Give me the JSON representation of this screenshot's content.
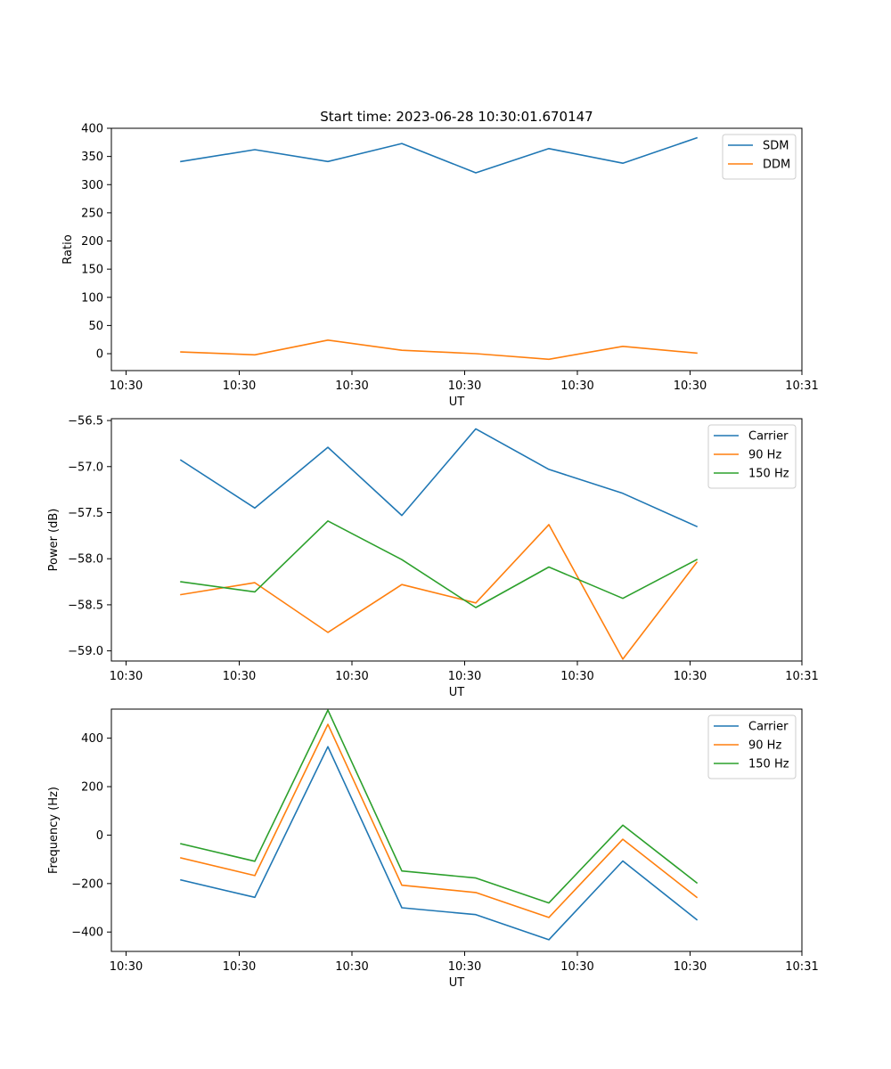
{
  "title": "Start time: 2023-06-28 10:30:01.670147",
  "colors": {
    "blue": "#1f77b4",
    "orange": "#ff7f0e",
    "green": "#2ca02c"
  },
  "chart_data": [
    {
      "type": "line",
      "xlabel": "UT",
      "ylabel": "Ratio",
      "x_tick_labels": [
        "10:30",
        "10:30",
        "10:30",
        "10:30",
        "10:30",
        "10:30",
        "10:31"
      ],
      "yticks": [
        0,
        50,
        100,
        150,
        200,
        250,
        300,
        350,
        400
      ],
      "ylim": [
        -30,
        400
      ],
      "grid": false,
      "legend_position": "upper-right",
      "series": [
        {
          "name": "SDM",
          "color": "#1f77b4",
          "values": [
            341,
            362,
            341,
            373,
            321,
            364,
            338,
            383
          ]
        },
        {
          "name": "DDM",
          "color": "#ff7f0e",
          "values": [
            3,
            -2,
            24,
            6,
            0,
            -10,
            13,
            1
          ]
        }
      ]
    },
    {
      "type": "line",
      "xlabel": "UT",
      "ylabel": "Power (dB)",
      "x_tick_labels": [
        "10:30",
        "10:30",
        "10:30",
        "10:30",
        "10:30",
        "10:30",
        "10:31"
      ],
      "yticks": [
        -59.0,
        -58.5,
        -58.0,
        -57.5,
        -57.0,
        -56.5
      ],
      "ytick_labels": [
        "−59.0",
        "−58.5",
        "−58.0",
        "−57.5",
        "−57.0",
        "−56.5"
      ],
      "ylim": [
        -59.11,
        -56.48
      ],
      "grid": false,
      "legend_position": "upper-right",
      "series": [
        {
          "name": "Carrier",
          "color": "#1f77b4",
          "values": [
            -56.93,
            -57.45,
            -56.79,
            -57.53,
            -56.59,
            -57.03,
            -57.29,
            -57.65
          ]
        },
        {
          "name": "90 Hz",
          "color": "#ff7f0e",
          "values": [
            -58.39,
            -58.26,
            -58.8,
            -58.28,
            -58.48,
            -57.63,
            -59.09,
            -58.04
          ]
        },
        {
          "name": "150 Hz",
          "color": "#2ca02c",
          "values": [
            -58.25,
            -58.36,
            -57.59,
            -58.01,
            -58.53,
            -58.09,
            -58.43,
            -58.01
          ]
        }
      ]
    },
    {
      "type": "line",
      "xlabel": "UT",
      "ylabel": "Frequency (Hz)",
      "x_tick_labels": [
        "10:30",
        "10:30",
        "10:30",
        "10:30",
        "10:30",
        "10:30",
        "10:31"
      ],
      "yticks": [
        -400,
        -200,
        0,
        200,
        400
      ],
      "ytick_labels": [
        "−400",
        "−200",
        "0",
        "200",
        "400"
      ],
      "ylim": [
        -480,
        520
      ],
      "grid": false,
      "legend_position": "upper-right",
      "series": [
        {
          "name": "Carrier",
          "color": "#1f77b4",
          "values": [
            -185,
            -257,
            365,
            -300,
            -328,
            -432,
            -107,
            -349
          ]
        },
        {
          "name": "90 Hz",
          "color": "#ff7f0e",
          "values": [
            -94,
            -167,
            457,
            -207,
            -237,
            -340,
            -17,
            -257
          ]
        },
        {
          "name": "150 Hz",
          "color": "#2ca02c",
          "values": [
            -36,
            -108,
            516,
            -148,
            -177,
            -280,
            41,
            -197
          ]
        }
      ]
    }
  ]
}
